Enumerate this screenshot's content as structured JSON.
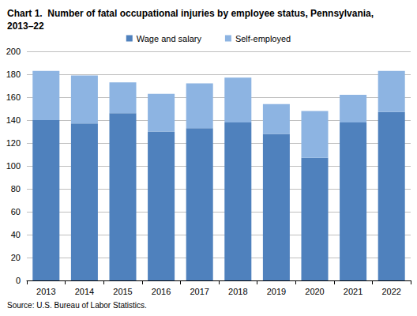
{
  "chart_data": {
    "type": "bar",
    "title": "Chart 1.  Number of fatal occupational injuries by employee status, Pennsylvania, 2013–22",
    "source": "Source: U.S. Bureau of Labor Statistics.",
    "categories": [
      "2013",
      "2014",
      "2015",
      "2016",
      "2017",
      "2018",
      "2019",
      "2020",
      "2021",
      "2022"
    ],
    "series": [
      {
        "name": "Wage and salary",
        "color": "#4f81bd",
        "values": [
          140,
          137,
          146,
          130,
          133,
          138,
          128,
          107,
          138,
          147
        ]
      },
      {
        "name": "Self-employed",
        "color": "#8db4e2",
        "values": [
          43,
          42,
          27,
          33,
          39,
          39,
          26,
          41,
          24,
          36
        ]
      }
    ],
    "stacked": true,
    "ylim": [
      0,
      200
    ],
    "yticks": [
      0,
      20,
      40,
      60,
      80,
      100,
      120,
      140,
      160,
      180,
      200
    ],
    "grid": true,
    "legend": "top"
  }
}
